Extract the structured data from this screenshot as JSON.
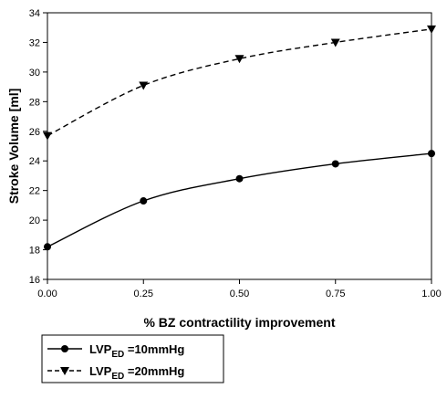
{
  "chart_data": {
    "type": "line",
    "title": "",
    "xlabel": "% BZ contractility improvement",
    "ylabel": "Stroke Volume [ml]",
    "xlim": [
      0.0,
      1.0
    ],
    "ylim": [
      16,
      34
    ],
    "x_ticks": [
      "0.00",
      "0.25",
      "0.50",
      "0.75",
      "1.00"
    ],
    "y_ticks": [
      "16",
      "18",
      "20",
      "22",
      "24",
      "26",
      "28",
      "30",
      "32",
      "34"
    ],
    "x": [
      0.0,
      0.25,
      0.5,
      0.75,
      1.0
    ],
    "grid": false,
    "legend_position": "bottom-left",
    "series": [
      {
        "legend_main": "LVP",
        "legend_sub": "ED",
        "legend_suffix": " =10mmHg",
        "values": [
          18.2,
          21.3,
          22.8,
          23.8,
          24.5
        ],
        "marker": "circle",
        "line_style": "solid",
        "color": "#000000"
      },
      {
        "legend_main": "LVP",
        "legend_sub": "ED",
        "legend_suffix": " =20mmHg",
        "values": [
          25.7,
          29.1,
          30.9,
          32.0,
          32.9
        ],
        "marker": "triangle-down",
        "line_style": "dashed",
        "color": "#000000"
      }
    ]
  }
}
